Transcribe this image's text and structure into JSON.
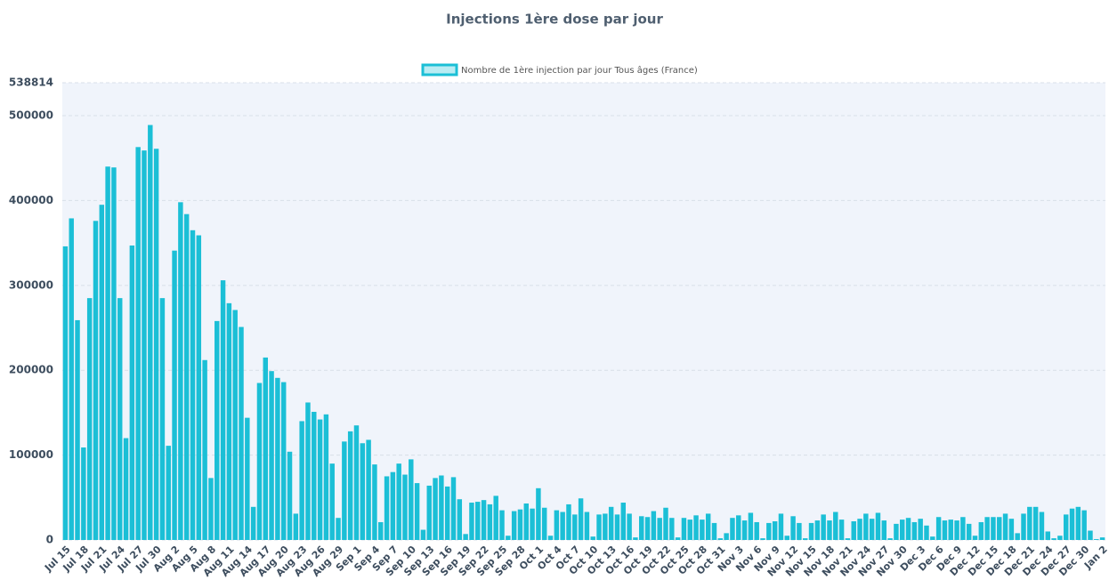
{
  "chart_data": {
    "type": "bar",
    "title": "Injections 1ère dose par jour",
    "series": [
      {
        "name": "Nombre de 1ère injection par jour Tous âges (France)",
        "color": "#1bbfd6",
        "values": [
          346000,
          379000,
          259000,
          109000,
          285000,
          376000,
          395000,
          440000,
          439000,
          285000,
          120000,
          347000,
          463000,
          459000,
          489000,
          461000,
          285000,
          111000,
          341000,
          398000,
          384000,
          365000,
          359000,
          212000,
          73000,
          258000,
          306000,
          279000,
          271000,
          251000,
          144000,
          39000,
          185000,
          215000,
          199000,
          191000,
          186000,
          104000,
          31000,
          140000,
          162000,
          151000,
          142000,
          148000,
          90000,
          26000,
          116000,
          128000,
          135000,
          114000,
          118000,
          89000,
          21000,
          75000,
          80000,
          90000,
          77000,
          95000,
          67000,
          12000,
          64000,
          73000,
          76000,
          63000,
          74000,
          48000,
          7000,
          44000,
          45000,
          47000,
          42000,
          52000,
          35000,
          5000,
          34000,
          36000,
          43000,
          37000,
          61000,
          38000,
          5000,
          35000,
          33000,
          42000,
          30000,
          49000,
          33000,
          4000,
          30000,
          31000,
          39000,
          30000,
          44000,
          31000,
          3000,
          28000,
          27000,
          34000,
          26000,
          38000,
          26000,
          3000,
          26000,
          24000,
          29000,
          24000,
          31000,
          20000,
          2000,
          8000,
          26000,
          29000,
          23000,
          32000,
          21000,
          2000,
          20000,
          22000,
          31000,
          5000,
          28000,
          20000,
          2000,
          20000,
          23000,
          30000,
          23000,
          33000,
          24000,
          2000,
          22000,
          25000,
          31000,
          25000,
          32000,
          23000,
          2000,
          19000,
          24000,
          26000,
          21000,
          25000,
          17000,
          4000,
          27000,
          23000,
          24000,
          23000,
          27000,
          19000,
          5000,
          21000,
          27000,
          27000,
          27000,
          31000,
          25000,
          8000,
          31000,
          39000,
          39000,
          33000,
          10000,
          2000,
          5000,
          30000,
          37000,
          39000,
          35000,
          11000,
          1000,
          3000
        ]
      }
    ],
    "categories": [
      "Jul 15",
      null,
      null,
      "Jul 18",
      null,
      null,
      "Jul 21",
      null,
      null,
      "Jul 24",
      null,
      null,
      "Jul 27",
      null,
      null,
      "Jul 30",
      null,
      null,
      "Aug 2",
      null,
      null,
      "Aug 5",
      null,
      null,
      "Aug 8",
      null,
      null,
      "Aug 11",
      null,
      null,
      "Aug 14",
      null,
      null,
      "Aug 17",
      null,
      null,
      "Aug 20",
      null,
      null,
      "Aug 23",
      null,
      null,
      "Aug 26",
      null,
      null,
      "Aug 29",
      null,
      null,
      "Sep 1",
      null,
      null,
      "Sep 4",
      null,
      null,
      "Sep 7",
      null,
      null,
      "Sep 10",
      null,
      null,
      "Sep 13",
      null,
      null,
      "Sep 16",
      null,
      null,
      "Sep 19",
      null,
      null,
      "Sep 22",
      null,
      null,
      "Sep 25",
      null,
      null,
      "Sep 28",
      null,
      null,
      "Oct 1",
      null,
      null,
      "Oct 4",
      null,
      null,
      "Oct 7",
      null,
      null,
      "Oct 10",
      null,
      null,
      "Oct 13",
      null,
      null,
      "Oct 16",
      null,
      null,
      "Oct 19",
      null,
      null,
      "Oct 22",
      null,
      null,
      "Oct 25",
      null,
      null,
      "Oct 28",
      null,
      null,
      "Oct 31",
      null,
      null,
      "Nov 3",
      null,
      null,
      "Nov 6",
      null,
      null,
      "Nov 9",
      null,
      null,
      "Nov 12",
      null,
      null,
      "Nov 15",
      null,
      null,
      "Nov 18",
      null,
      null,
      "Nov 21",
      null,
      null,
      "Nov 24",
      null,
      null,
      "Nov 27",
      null,
      null,
      "Nov 30",
      null,
      null,
      "Dec 3",
      null,
      null,
      "Dec 6",
      null,
      null,
      "Dec 9",
      null,
      null,
      "Dec 12",
      null,
      null,
      "Dec 15",
      null,
      null,
      "Dec 18",
      null,
      null,
      "Dec 21",
      null,
      null,
      "Dec 24",
      null,
      null,
      "Dec 27",
      null,
      null,
      "Dec 30",
      null,
      null,
      "Jan 2"
    ],
    "ylim": [
      0,
      538814
    ],
    "yticks": [
      0,
      100000,
      200000,
      300000,
      400000,
      500000,
      538814
    ],
    "grid": true
  }
}
